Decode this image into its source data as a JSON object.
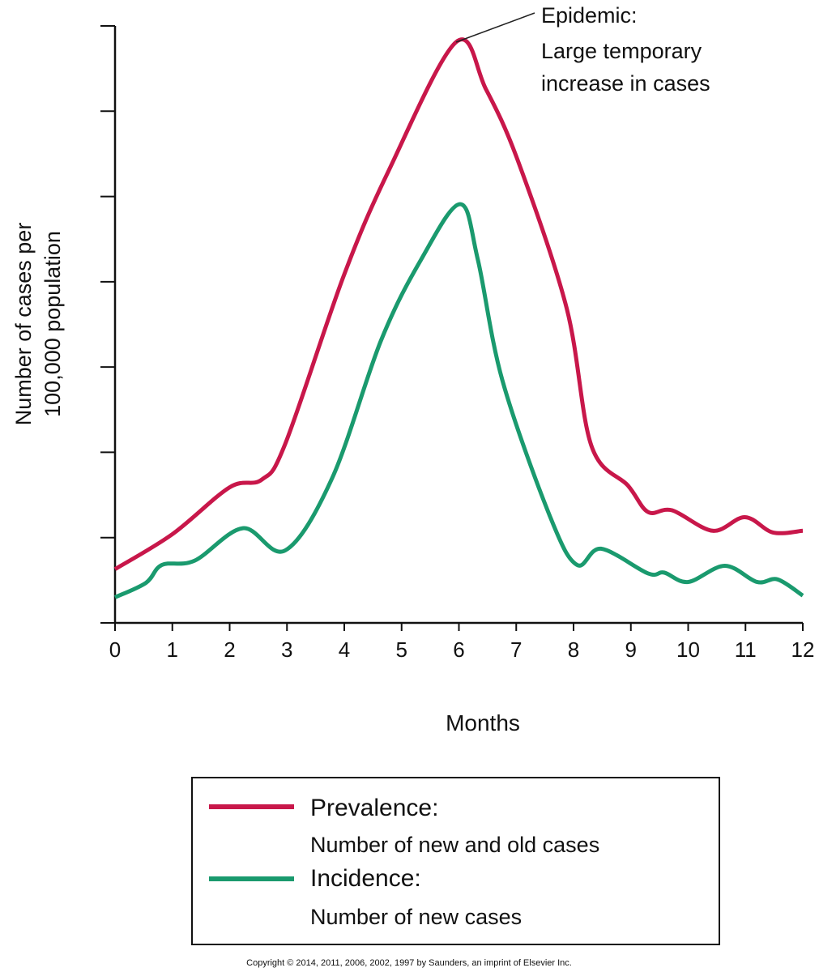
{
  "chart_data": {
    "type": "line",
    "title": "",
    "xlabel": "Months",
    "ylabel_lines": [
      "Number of cases per",
      "100,000 population"
    ],
    "xlim": [
      0,
      12
    ],
    "ylim": [
      0,
      7
    ],
    "xticks": [
      "0",
      "1",
      "2",
      "3",
      "4",
      "5",
      "6",
      "7",
      "8",
      "9",
      "10",
      "11",
      "12"
    ],
    "yticks_unlabeled": [
      0,
      1,
      2,
      3,
      4,
      5,
      6,
      7
    ],
    "grid": false,
    "annotation": {
      "lines": [
        "Epidemic:",
        "Large temporary",
        "increase in cases"
      ],
      "points_to": {
        "x": 5.95,
        "y": 6.81
      }
    },
    "legend_placement": "bottom",
    "series": [
      {
        "name": "Prevalence:",
        "description": "Number of new and old cases",
        "color": "#c8174a",
        "x": [
          0,
          1,
          2,
          2.56,
          2.97,
          3.99,
          4.78,
          5.95,
          6.47,
          7.04,
          7.88,
          8.31,
          8.95,
          9.3,
          9.72,
          10.43,
          10.99,
          11.48,
          12
        ],
        "y": [
          0.63,
          1.04,
          1.59,
          1.68,
          2.1,
          4.07,
          5.31,
          6.81,
          6.26,
          5.4,
          3.69,
          2.08,
          1.61,
          1.3,
          1.32,
          1.08,
          1.24,
          1.06,
          1.08
        ]
      },
      {
        "name": "Incidence:",
        "description": "Number of new cases",
        "color": "#1a9a6e",
        "x": [
          0,
          0.54,
          0.82,
          1.39,
          2.23,
          2.97,
          3.79,
          4.64,
          5.34,
          6.02,
          6.33,
          6.76,
          7.6,
          8.06,
          8.48,
          9.3,
          9.58,
          10.0,
          10.64,
          11.2,
          11.56,
          12
        ],
        "y": [
          0.3,
          0.47,
          0.68,
          0.73,
          1.11,
          0.85,
          1.7,
          3.31,
          4.26,
          4.91,
          4.26,
          2.84,
          1.23,
          0.68,
          0.87,
          0.58,
          0.59,
          0.48,
          0.67,
          0.48,
          0.51,
          0.32
        ]
      }
    ]
  },
  "copyright": "Copyright © 2014, 2011, 2006, 2002, 1997 by Saunders, an imprint of Elsevier Inc."
}
